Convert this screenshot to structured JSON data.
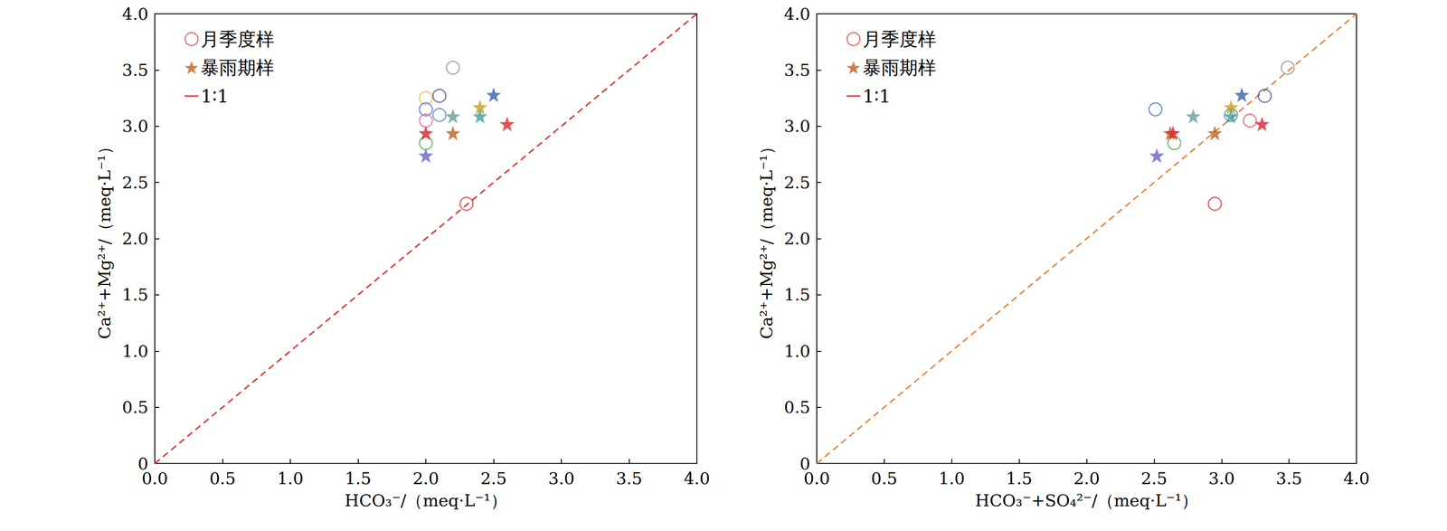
{
  "chart_data": [
    {
      "type": "scatter",
      "x_label": "HCO₃⁻/（meq·L⁻¹）",
      "y_label": "Ca²⁺+Mg²⁺/（meq·L⁻¹）",
      "xlim": [
        0,
        4
      ],
      "xticks": [
        {
          "value": 0,
          "label": "0.0"
        },
        0.5,
        {
          "value": 1,
          "label": "1.0"
        },
        1.5,
        {
          "value": 2,
          "label": "2.0"
        },
        2.5,
        {
          "value": 3,
          "label": "3.0"
        },
        3.5,
        {
          "value": 4,
          "label": "4.0"
        }
      ],
      "ylim": [
        0,
        4
      ],
      "yticks": [
        0,
        0.5,
        {
          "value": 1,
          "label": "1.0"
        },
        1.5,
        {
          "value": 2,
          "label": "2.0"
        },
        2.5,
        {
          "value": 3,
          "label": "3.0"
        },
        3.5,
        {
          "value": 4,
          "label": "4.0"
        }
      ],
      "grid": false,
      "legend": "upper left",
      "series": [
        {
          "name": "月季度样",
          "marker": "circle",
          "color": "#d62728",
          "x": [
            2.0,
            2.0,
            2.0,
            2.0,
            2.1,
            2.1,
            2.2,
            2.3
          ],
          "values": [
            3.25,
            3.15,
            3.05,
            2.85,
            3.27,
            3.1,
            3.52,
            2.31
          ],
          "colors": [
            "#f0c020",
            "#4a6fd0",
            "#e060a0",
            "#40b040",
            "#404890",
            "#5080c0",
            "#909090",
            "#d03030"
          ]
        },
        {
          "name": "暴雨期样",
          "marker": "star",
          "color": "#c06020",
          "x": [
            2.0,
            2.0,
            2.2,
            2.2,
            2.4,
            2.4,
            2.5,
            2.6
          ],
          "values": [
            2.94,
            2.74,
            3.09,
            2.94,
            3.17,
            3.09,
            3.28,
            3.02
          ],
          "colors": [
            "#e02030",
            "#6a60c0",
            "#6a9a9a",
            "#c06020",
            "#c8a020",
            "#40a0a0",
            "#3a60b0",
            "#e02030"
          ]
        },
        {
          "name": "1∶1",
          "type": "line",
          "line_style": "dashed",
          "color": "#e03030",
          "x": [
            0,
            4
          ],
          "values": [
            0,
            4
          ]
        }
      ]
    },
    {
      "type": "scatter",
      "x_label": "HCO₃⁻+SO₄²⁻/（meq·L⁻¹）",
      "y_label": "Ca²⁺+Mg²⁺/（meq·L⁻¹）",
      "xlim": [
        0,
        4
      ],
      "xticks": [
        {
          "value": 0,
          "label": "0.0"
        },
        0.5,
        {
          "value": 1,
          "label": "1.0"
        },
        1.5,
        {
          "value": 2,
          "label": "2.0"
        },
        2.5,
        {
          "value": 3,
          "label": "3.0"
        },
        3.5,
        {
          "value": 4,
          "label": "4.0"
        }
      ],
      "ylim": [
        0,
        4
      ],
      "yticks": [
        0,
        0.5,
        {
          "value": 1,
          "label": "1.0"
        },
        1.5,
        {
          "value": 2,
          "label": "2.0"
        },
        2.5,
        {
          "value": 3,
          "label": "3.0"
        },
        3.5,
        {
          "value": 4,
          "label": "4.0"
        }
      ],
      "grid": false,
      "legend": "upper left",
      "series": [
        {
          "name": "月季度样",
          "marker": "circle",
          "color": "#d62728",
          "x": [
            2.51,
            2.65,
            3.07,
            3.21,
            3.32,
            3.49,
            2.95
          ],
          "values": [
            3.15,
            2.85,
            3.1,
            3.05,
            3.27,
            3.52,
            2.31
          ],
          "colors": [
            "#4a6fd0",
            "#40b040",
            "#5080c0",
            "#e05060",
            "#404890",
            "#909090",
            "#d03030"
          ]
        },
        {
          "name": "暴雨期样",
          "marker": "star",
          "color": "#c06020",
          "x": [
            2.52,
            2.62,
            2.64,
            2.79,
            2.95,
            3.07,
            3.07,
            3.15,
            3.3
          ],
          "values": [
            2.74,
            2.94,
            2.94,
            3.09,
            2.94,
            3.17,
            3.09,
            3.28,
            3.02
          ],
          "colors": [
            "#6a60c0",
            "#c06020",
            "#e02030",
            "#6a9a9a",
            "#c06020",
            "#c8a020",
            "#40a0a0",
            "#3a60b0",
            "#e02030"
          ]
        },
        {
          "name": "1∶1",
          "type": "line",
          "line_style": "dashed",
          "color": "#e8803a",
          "x": [
            0,
            4
          ],
          "values": [
            0,
            4
          ]
        }
      ]
    }
  ]
}
